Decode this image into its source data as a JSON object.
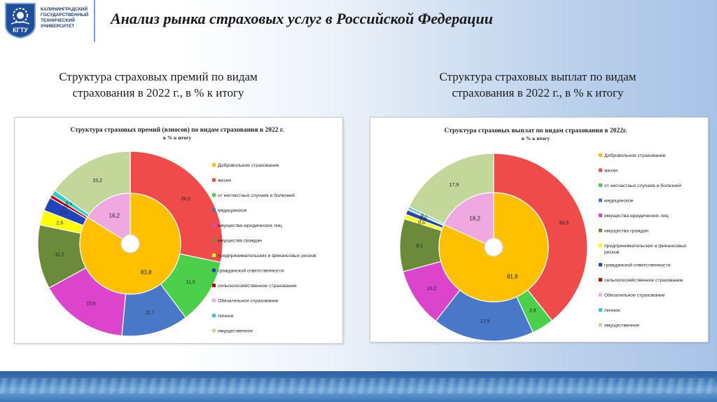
{
  "header": {
    "university_lines": [
      "КАЛИНИНГРАДСКИЙ",
      "ГОСУДАРСТВЕННЫЙ",
      "ТЕХНИЧЕСКИЙ",
      "УНИВЕРСИТЕТ"
    ],
    "logo_text": "КГТУ",
    "title": "Анализ рынка страховых услуг в Российской Федерации"
  },
  "left_subtitle": [
    "Структура страховых премий по видам",
    "страхования в 2022 г., в % к итогу"
  ],
  "right_subtitle": [
    "Структура страховых выплат по видам",
    "страхования в 2022 г., в % к итогу"
  ],
  "colors": {
    "orange": "#ffc000",
    "red": "#f04b4b",
    "green": "#4cd04c",
    "blue": "#4a78c8",
    "magenta": "#dd44cc",
    "olive": "#6b8a3a",
    "yellow": "#ffff00",
    "navy": "#2244bb",
    "darkred": "#c00000",
    "pink": "#f0a8e0",
    "cyan": "#33cccc",
    "khaki": "#c4d79b"
  },
  "chart_data": [
    {
      "type": "pie",
      "title": "Структура страховых премий (взносов) по видам страхования в 2022 г.",
      "subtitle": "в % к итогу",
      "legend_position": "right",
      "legend": [
        {
          "label": "Добровольное страхование",
          "color": "#ffc000"
        },
        {
          "label": "жизни",
          "color": "#f04b4b"
        },
        {
          "label": "от несчастных случаев и болезней",
          "color": "#4cd04c"
        },
        {
          "label": "медицинское",
          "color": "#4a78c8"
        },
        {
          "label": "имущества юридических лиц",
          "color": "#dd44cc"
        },
        {
          "label": "имущества граждан",
          "color": "#6b8a3a"
        },
        {
          "label": "предпринимательских и финансовых рисков",
          "color": "#ffff00"
        },
        {
          "label": "гражданской ответственности",
          "color": "#2244bb"
        },
        {
          "label": "сельскохозяйственное страхование",
          "color": "#c00000"
        },
        {
          "label": "Обязательное страхование",
          "color": "#f0a8e0"
        },
        {
          "label": "личное",
          "color": "#33cccc"
        },
        {
          "label": "имущественное",
          "color": "#c4d79b"
        }
      ],
      "inner": [
        {
          "name": "Добровольное страхование",
          "value": 83.8,
          "label": "83,8",
          "color": "#ffc000"
        },
        {
          "name": "Обязательное страхование",
          "value": 16.2,
          "label": "16,2",
          "color": "#f0a8e0"
        }
      ],
      "outer": [
        {
          "name": "жизни",
          "value": 28.2,
          "label": "28,2",
          "color": "#f04b4b"
        },
        {
          "name": "от несчастных случаев и болезней",
          "value": 11.5,
          "label": "11,5",
          "color": "#4cd04c"
        },
        {
          "name": "медицинское",
          "value": 11.7,
          "label": "11,7",
          "color": "#4a78c8"
        },
        {
          "name": "имущества юридических лиц",
          "value": 15.6,
          "label": "15,6",
          "color": "#dd44cc"
        },
        {
          "name": "имущества граждан",
          "value": 11.2,
          "label": "11,2",
          "color": "#6b8a3a"
        },
        {
          "name": "предпринимательских и финансовых рисков",
          "value": 2.6,
          "label": "2,6",
          "color": "#ffff00"
        },
        {
          "name": "гражданской ответственности",
          "value": 2.4,
          "label": "2,4",
          "color": "#2244bb"
        },
        {
          "name": "сельскохозяйственное страхование",
          "value": 0.6,
          "label": "0,6",
          "color": "#c00000"
        },
        {
          "name": "личное",
          "value": 0.9,
          "label": "0,9",
          "color": "#33cccc"
        },
        {
          "name": "имущественное",
          "value": 15.2,
          "label": "15,2",
          "color": "#c4d79b"
        }
      ]
    },
    {
      "type": "pie",
      "title": "Структура страховых выплат по видам страхования в 2022г.",
      "subtitle": "в % к итогу",
      "legend_position": "right",
      "legend": [
        {
          "label": "Добровольное страхование",
          "color": "#ffc000"
        },
        {
          "label": "жизни",
          "color": "#f04b4b"
        },
        {
          "label": "от несчастных случаев и болезней",
          "color": "#4cd04c"
        },
        {
          "label": "медицинское",
          "color": "#4a78c8"
        },
        {
          "label": "имущества юридических лиц",
          "color": "#dd44cc"
        },
        {
          "label": "имущества граждан",
          "color": "#6b8a3a"
        },
        {
          "label": "предпринимательских и финансовых рисков",
          "color": "#ffff00"
        },
        {
          "label": "гражданской ответственности",
          "color": "#2244bb"
        },
        {
          "label": "сельскохозяйственное страхование",
          "color": "#c00000"
        },
        {
          "label": "Обязательное страхование",
          "color": "#f0a8e0"
        },
        {
          "label": "личное",
          "color": "#33cccc"
        },
        {
          "label": "имущественное",
          "color": "#c4d79b"
        }
      ],
      "inner": [
        {
          "name": "Добровольное страхование",
          "value": 81.8,
          "label": "81,8",
          "color": "#ffc000"
        },
        {
          "name": "Обязательное страхование",
          "value": 18.2,
          "label": "18,2",
          "color": "#f0a8e0"
        }
      ],
      "outer": [
        {
          "name": "жизни",
          "value": 39.3,
          "label": "39,3",
          "color": "#f04b4b"
        },
        {
          "name": "от несчастных случаев и болезней",
          "value": 3.8,
          "label": "3,8",
          "color": "#4cd04c"
        },
        {
          "name": "медицинское",
          "value": 17.5,
          "label": "17,5",
          "color": "#4a78c8"
        },
        {
          "name": "имущества юридических лиц",
          "value": 10.2,
          "label": "10,2",
          "color": "#dd44cc"
        },
        {
          "name": "имущества граждан",
          "value": 9.1,
          "label": "9,1",
          "color": "#6b8a3a"
        },
        {
          "name": "предпринимательских и финансовых рисков",
          "value": 0.8,
          "label": "0,8",
          "color": "#ffff00"
        },
        {
          "name": "гражданской ответственности",
          "value": 0.8,
          "label": "0,8",
          "color": "#2244bb"
        },
        {
          "name": "сельскохозяйственное страхование",
          "value": 0.2,
          "label": "0,2",
          "color": "#c00000"
        },
        {
          "name": "личное",
          "value": 0.4,
          "label": "0,4",
          "color": "#33cccc"
        },
        {
          "name": "имущественное",
          "value": 17.9,
          "label": "17,9",
          "color": "#c4d79b"
        }
      ]
    }
  ]
}
